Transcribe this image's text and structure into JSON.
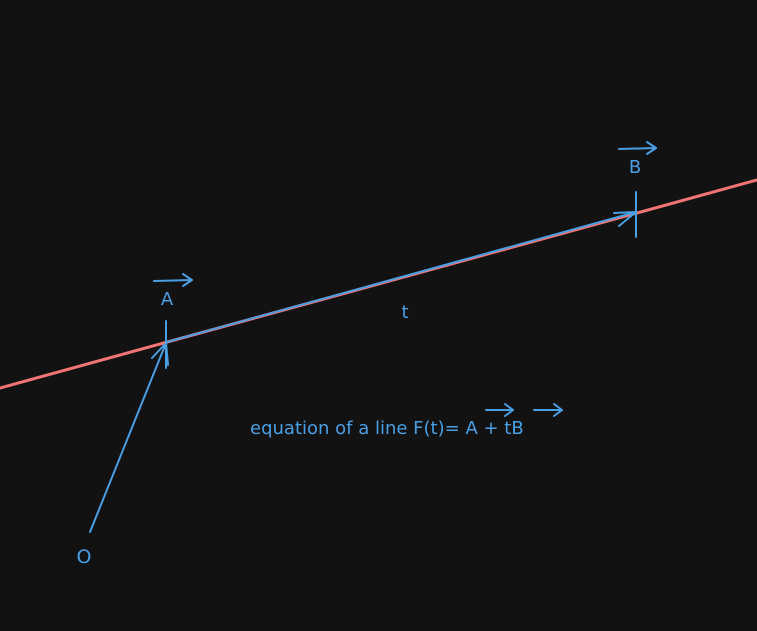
{
  "colors": {
    "background": "#121212",
    "line": "#f27474",
    "vector": "#4a9fe4"
  },
  "labels": {
    "origin": "O",
    "point_a": "A",
    "point_b": "B",
    "parameter": "t",
    "equation_prefix": "equation of a line F(t)= ",
    "equation_a": "A",
    "equation_plus": " + t",
    "equation_b": "B"
  }
}
